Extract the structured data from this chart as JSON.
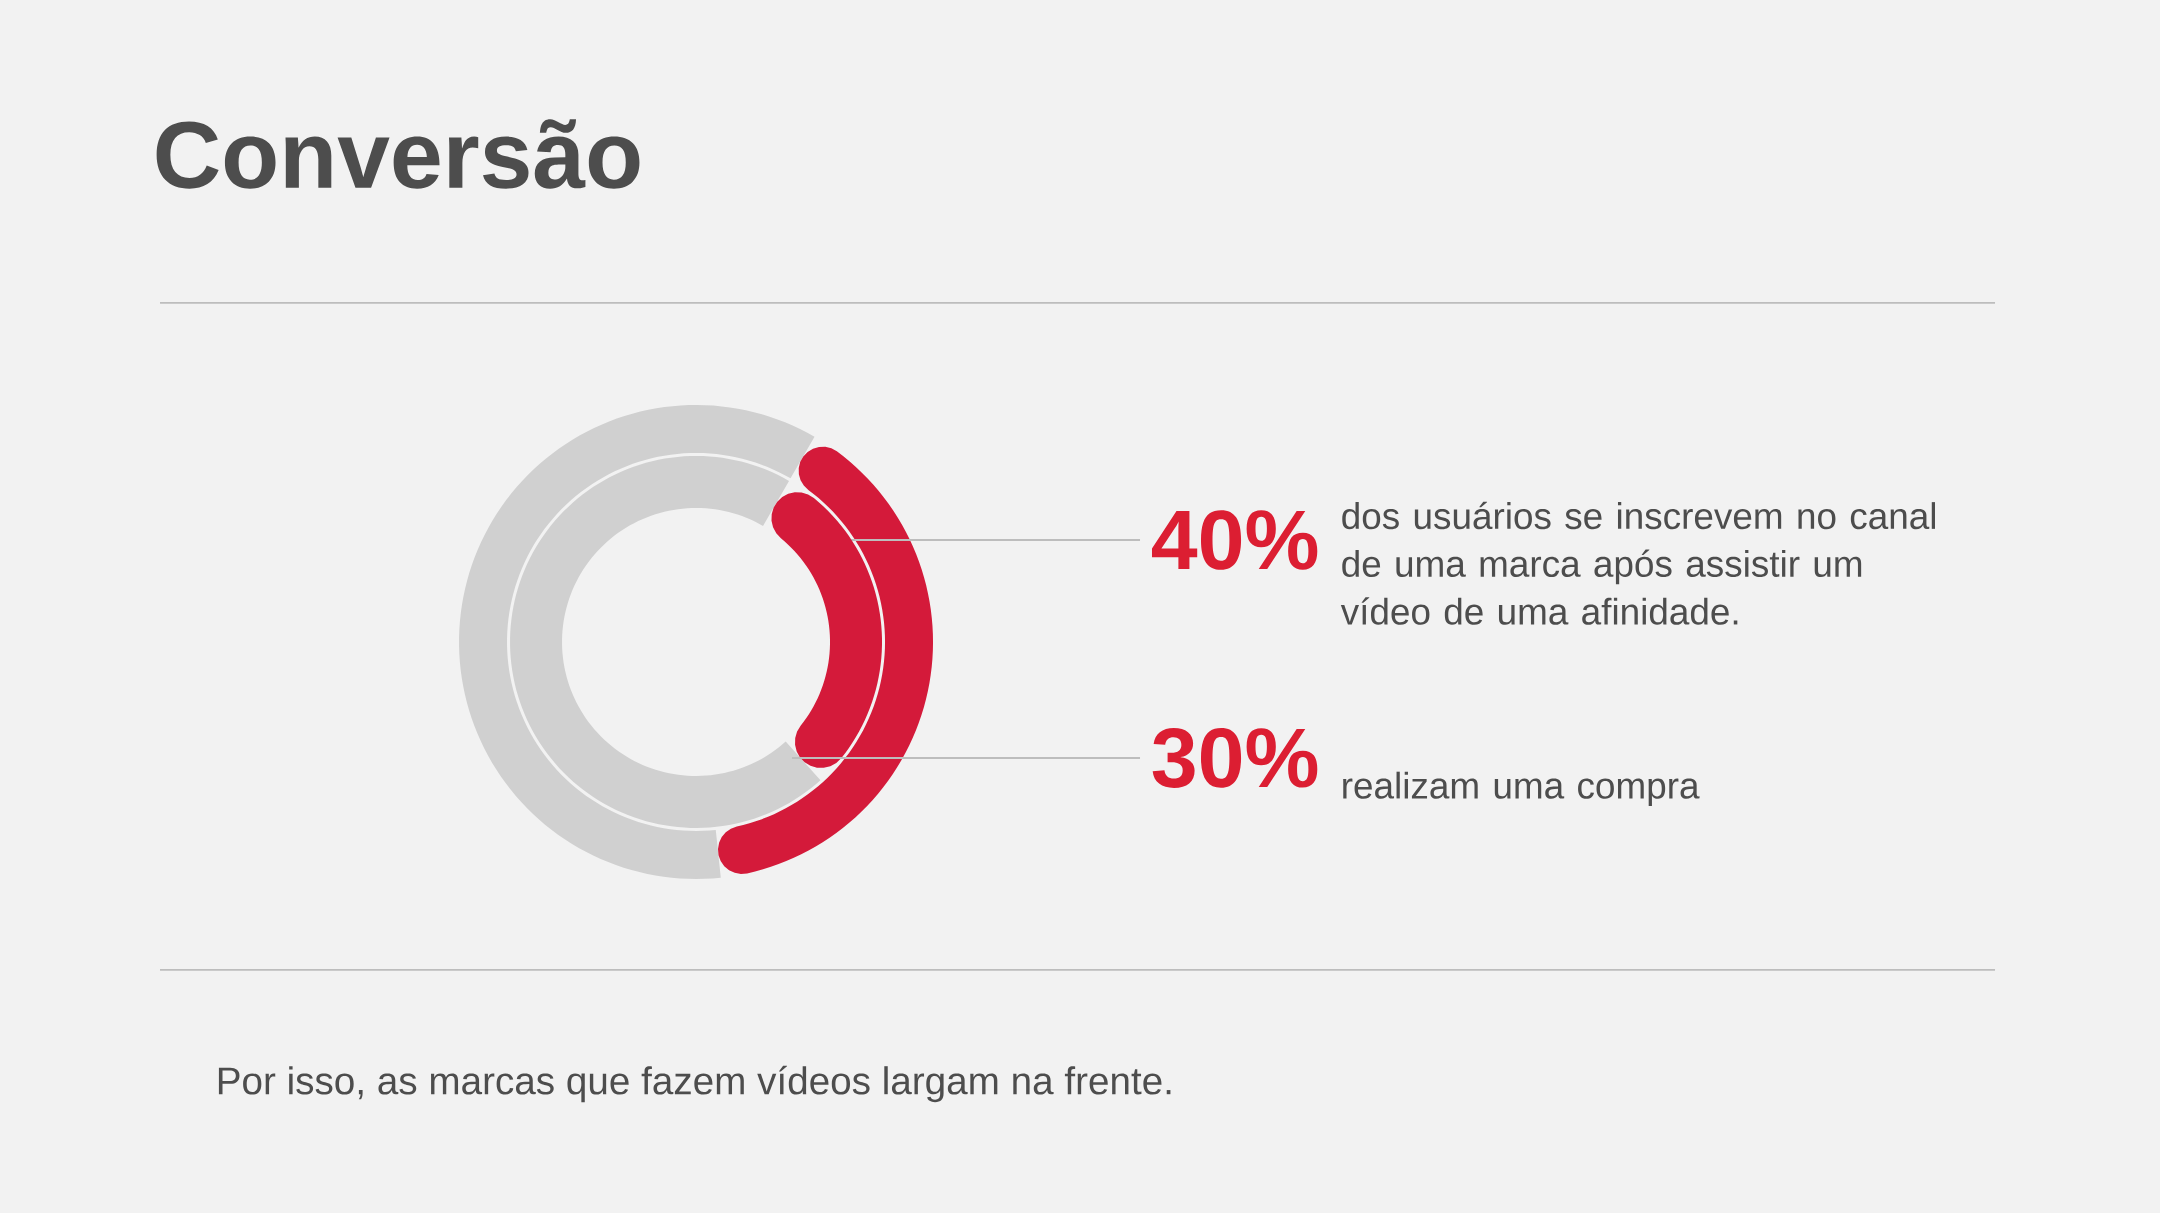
{
  "chart_data": {
    "type": "donut",
    "title": "Conversão",
    "categories": [
      null,
      null
    ],
    "series": [
      {
        "name": "dos usuários se inscrevem no canal de uma marca após assistir um vídeo de uma afinidade.",
        "values": [
          40,
          60
        ],
        "colors": [
          "#d41a3a",
          "#d0d0d0"
        ]
      },
      {
        "name": "realizam uma compra",
        "values": [
          30,
          70
        ],
        "colors": [
          "#d41a3a",
          "#d0d0d0"
        ]
      }
    ],
    "annotations": [
      "40%",
      "30%",
      "Por isso, as  marcas que fazem vídeos largam na frente."
    ]
  }
}
